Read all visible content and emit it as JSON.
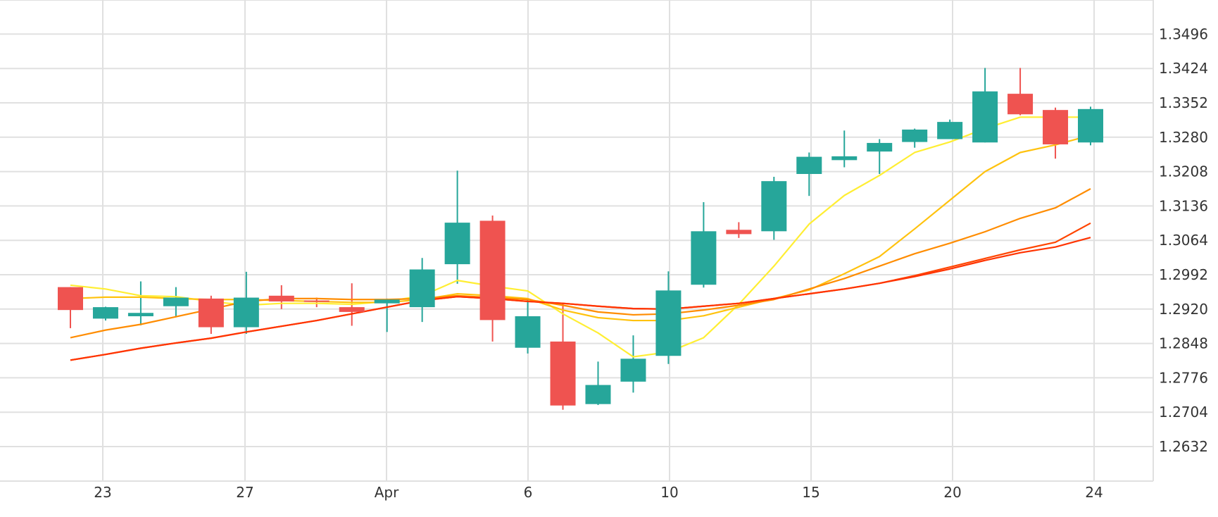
{
  "chart_data": {
    "type": "candlestick",
    "x_tick_labels": [
      "23",
      "27",
      "Apr",
      "6",
      "10",
      "15",
      "20",
      "24"
    ],
    "y_tick_labels": [
      "1.2632",
      "1.2704",
      "1.2776",
      "1.2848",
      "1.2920",
      "1.2992",
      "1.3064",
      "1.3136",
      "1.3208",
      "1.3280",
      "1.3352",
      "1.3424",
      "1.3496"
    ],
    "ylim": [
      1.2567,
      1.3554
    ],
    "grid": true,
    "legend": "none",
    "candles": [
      {
        "date": "Mar 22",
        "open": 1.2966,
        "high": 1.2966,
        "low": 1.288,
        "close": 1.2918
      },
      {
        "date": "Mar 23",
        "open": 1.29,
        "high": 1.2925,
        "low": 1.2896,
        "close": 1.2924
      },
      {
        "date": "Mar 24",
        "open": 1.2905,
        "high": 1.2978,
        "low": 1.2886,
        "close": 1.2912
      },
      {
        "date": "Mar 25",
        "open": 1.2926,
        "high": 1.2966,
        "low": 1.2905,
        "close": 1.2944
      },
      {
        "date": "Mar 26",
        "open": 1.2942,
        "high": 1.2948,
        "low": 1.2868,
        "close": 1.2882
      },
      {
        "date": "Mar 27",
        "open": 1.2882,
        "high": 1.2998,
        "low": 1.2868,
        "close": 1.2944
      },
      {
        "date": "Mar 28",
        "open": 1.2948,
        "high": 1.297,
        "low": 1.292,
        "close": 1.2936
      },
      {
        "date": "Mar 29",
        "open": 1.2938,
        "high": 1.2944,
        "low": 1.2924,
        "close": 1.2936
      },
      {
        "date": "Mar 31",
        "open": 1.2924,
        "high": 1.2974,
        "low": 1.2885,
        "close": 1.2914
      },
      {
        "date": "Apr 1",
        "open": 1.2932,
        "high": 1.2942,
        "low": 1.2872,
        "close": 1.294
      },
      {
        "date": "Apr 2",
        "open": 1.2924,
        "high": 1.3027,
        "low": 1.2893,
        "close": 1.3003
      },
      {
        "date": "Apr 3",
        "open": 1.3014,
        "high": 1.321,
        "low": 1.2973,
        "close": 1.3101
      },
      {
        "date": "Apr 4",
        "open": 1.3105,
        "high": 1.3116,
        "low": 1.2852,
        "close": 1.2897
      },
      {
        "date": "Apr 6",
        "open": 1.2839,
        "high": 1.294,
        "low": 1.2827,
        "close": 1.2905
      },
      {
        "date": "Apr 7",
        "open": 1.2852,
        "high": 1.2932,
        "low": 1.2709,
        "close": 1.2718
      },
      {
        "date": "Apr 8",
        "open": 1.2721,
        "high": 1.281,
        "low": 1.2719,
        "close": 1.2761
      },
      {
        "date": "Apr 9",
        "open": 1.2768,
        "high": 1.2865,
        "low": 1.2745,
        "close": 1.2816
      },
      {
        "date": "Apr 10",
        "open": 1.2822,
        "high": 1.2999,
        "low": 1.2805,
        "close": 1.2959
      },
      {
        "date": "Apr 11",
        "open": 1.2971,
        "high": 1.3144,
        "low": 1.2965,
        "close": 1.3083
      },
      {
        "date": "Apr 12",
        "open": 1.3086,
        "high": 1.3102,
        "low": 1.3069,
        "close": 1.3077
      },
      {
        "date": "Apr 13",
        "open": 1.3083,
        "high": 1.3197,
        "low": 1.3065,
        "close": 1.3188
      },
      {
        "date": "Apr 15",
        "open": 1.3203,
        "high": 1.3248,
        "low": 1.3157,
        "close": 1.3239
      },
      {
        "date": "Apr 16",
        "open": 1.3232,
        "high": 1.3294,
        "low": 1.3217,
        "close": 1.324
      },
      {
        "date": "Apr 17",
        "open": 1.325,
        "high": 1.3276,
        "low": 1.3203,
        "close": 1.3268
      },
      {
        "date": "Apr 18",
        "open": 1.327,
        "high": 1.3298,
        "low": 1.3258,
        "close": 1.3296
      },
      {
        "date": "Apr 20",
        "open": 1.3276,
        "high": 1.3317,
        "low": 1.3276,
        "close": 1.3312
      },
      {
        "date": "Apr 21",
        "open": 1.3269,
        "high": 1.3425,
        "low": 1.3269,
        "close": 1.3376
      },
      {
        "date": "Apr 22",
        "open": 1.3371,
        "high": 1.3425,
        "low": 1.3326,
        "close": 1.3328
      },
      {
        "date": "Apr 23",
        "open": 1.3337,
        "high": 1.3342,
        "low": 1.3235,
        "close": 1.3265
      },
      {
        "date": "Apr 24",
        "open": 1.3269,
        "high": 1.3344,
        "low": 1.3263,
        "close": 1.3339
      }
    ],
    "series": [
      {
        "color": "#ffee33",
        "values": [
          1.297,
          1.2962,
          1.2948,
          1.2946,
          1.2936,
          1.2928,
          1.2932,
          1.2932,
          1.293,
          1.2936,
          1.2948,
          1.298,
          1.2968,
          1.2958,
          1.291,
          1.287,
          1.282,
          1.283,
          1.286,
          1.293,
          1.301,
          1.3098,
          1.3158,
          1.32,
          1.3248,
          1.327,
          1.3298,
          1.3322,
          1.3322,
          1.3322
        ]
      },
      {
        "color": "#ffc20e",
        "values": [
          1.2942,
          1.2945,
          1.2945,
          1.2942,
          1.294,
          1.294,
          1.2938,
          1.2936,
          1.2934,
          1.2934,
          1.294,
          1.2952,
          1.2948,
          1.2942,
          1.2918,
          1.2902,
          1.2896,
          1.2896,
          1.2906,
          1.2924,
          1.2942,
          1.296,
          1.2994,
          1.303,
          1.3088,
          1.3148,
          1.3208,
          1.3248,
          1.3264,
          1.3284
        ]
      },
      {
        "color": "#ff8c00",
        "values": [
          1.286,
          1.2876,
          1.2888,
          1.2904,
          1.292,
          1.2936,
          1.2942,
          1.2942,
          1.294,
          1.294,
          1.2942,
          1.2948,
          1.2944,
          1.294,
          1.2928,
          1.2914,
          1.2908,
          1.291,
          1.2918,
          1.2928,
          1.294,
          1.2962,
          1.2984,
          1.301,
          1.3036,
          1.3058,
          1.3082,
          1.311,
          1.3132,
          1.3172
        ]
      },
      {
        "color": "#ff4500",
        "values": [
          1.2813,
          1.2825,
          1.2838,
          1.2849,
          1.2859,
          1.2872,
          1.2884,
          1.2896,
          1.291,
          1.2924,
          1.2938,
          1.2946,
          1.2942,
          1.2936,
          1.2932,
          1.2926,
          1.2921,
          1.292,
          1.2926,
          1.2932,
          1.2942,
          1.2952,
          1.2962,
          1.2974,
          1.299,
          1.3008,
          1.3026,
          1.3044,
          1.306,
          1.31
        ]
      },
      {
        "color": "#ff3300",
        "values": [
          1.2813,
          1.2825,
          1.2838,
          1.2849,
          1.2859,
          1.2872,
          1.2884,
          1.2896,
          1.291,
          1.2924,
          1.2938,
          1.2946,
          1.2942,
          1.2936,
          1.2932,
          1.2926,
          1.2921,
          1.292,
          1.2926,
          1.2932,
          1.2942,
          1.2952,
          1.2962,
          1.2974,
          1.2988,
          1.3004,
          1.3022,
          1.3038,
          1.305,
          1.307
        ]
      }
    ],
    "colors": {
      "up": "#26a69a",
      "down": "#ef5350",
      "grid": "#e0e0e0",
      "axis_text": "#333333"
    }
  }
}
